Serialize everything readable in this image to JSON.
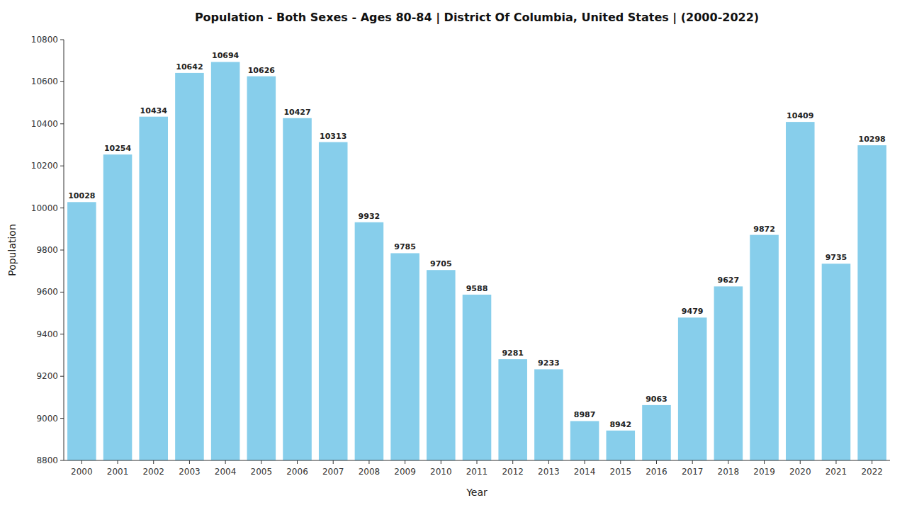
{
  "chart_data": {
    "type": "bar",
    "title": "Population - Both Sexes - Ages 80-84 | District Of Columbia, United States |  (2000-2022)",
    "x_label": "Year",
    "y_label": "Population",
    "categories": [
      "2000",
      "2001",
      "2002",
      "2003",
      "2004",
      "2005",
      "2006",
      "2007",
      "2008",
      "2009",
      "2010",
      "2011",
      "2012",
      "2013",
      "2014",
      "2015",
      "2016",
      "2017",
      "2018",
      "2019",
      "2020",
      "2021",
      "2022"
    ],
    "values": [
      10028,
      10254,
      10434,
      10642,
      10694,
      10626,
      10427,
      10313,
      9932,
      9785,
      9705,
      9588,
      9281,
      9233,
      8987,
      8942,
      9063,
      9479,
      9627,
      9872,
      10409,
      9735,
      10298
    ],
    "color": "#87CEEB",
    "ylim": [
      8800,
      10800
    ],
    "yticks": [
      8800,
      9000,
      9200,
      9400,
      9600,
      9800,
      10000,
      10200,
      10400,
      10600,
      10800
    ],
    "grid": false,
    "data_labels": true
  }
}
